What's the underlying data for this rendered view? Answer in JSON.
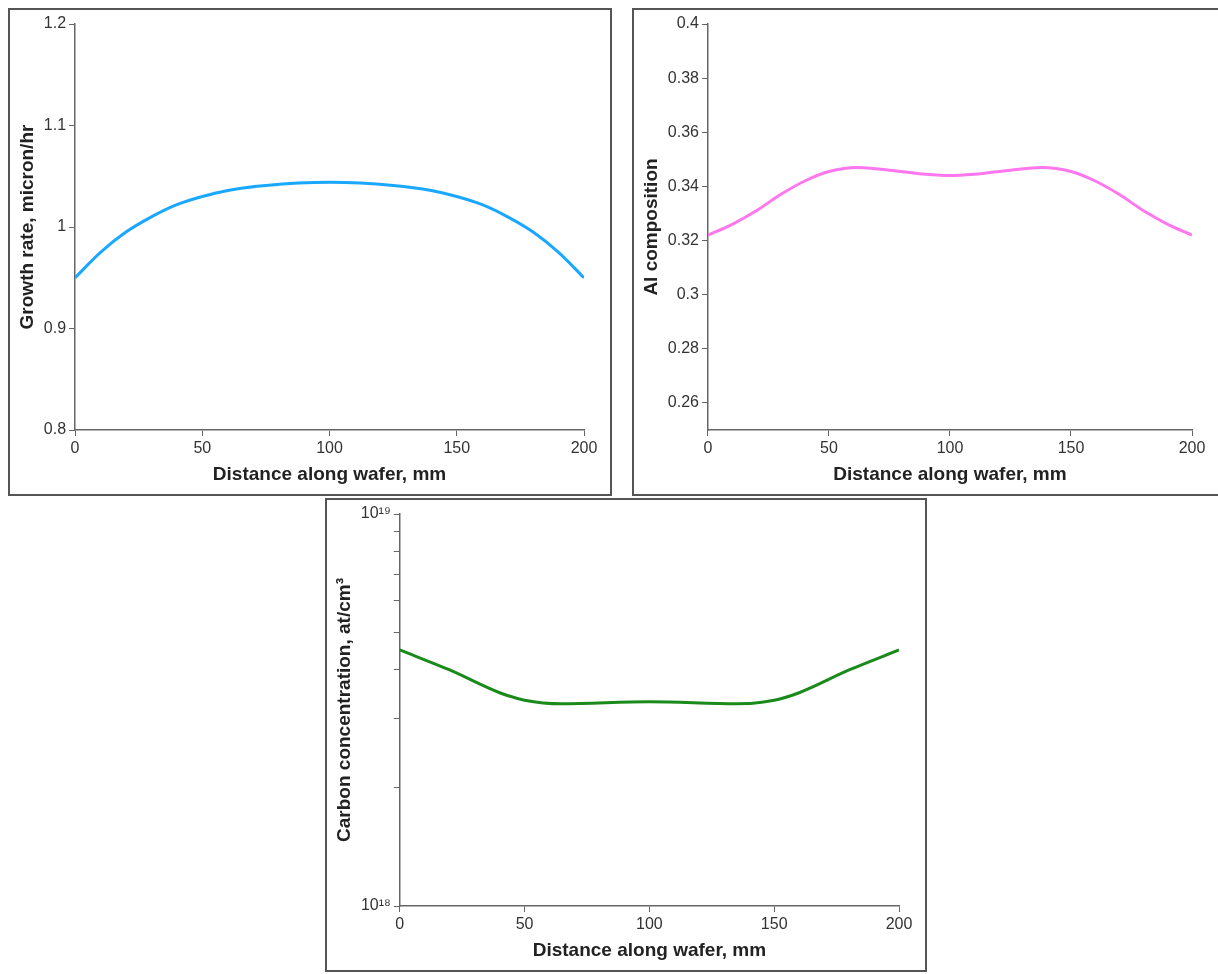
{
  "chart_data": [
    {
      "type": "line",
      "xlabel": "Distance along wafer, mm",
      "ylabel": "Growth rate, micron/hr",
      "xlim": [
        0,
        200
      ],
      "xticks": [
        0,
        50,
        100,
        150,
        200
      ],
      "ylim": [
        0.8,
        1.2
      ],
      "yticks": [
        0.8,
        0.9,
        1,
        1.1,
        1.2
      ],
      "grid": false,
      "legend": false,
      "marker": "none",
      "line_style": "solid",
      "series": [
        {
          "color": "#1aa7ff",
          "x": [
            0,
            10,
            20,
            30,
            40,
            50,
            60,
            75,
            100,
            125,
            140,
            150,
            160,
            170,
            180,
            190,
            200
          ],
          "values": [
            0.95,
            0.975,
            0.995,
            1.01,
            1.022,
            1.03,
            1.036,
            1.041,
            1.044,
            1.041,
            1.036,
            1.03,
            1.022,
            1.01,
            0.995,
            0.975,
            0.95
          ]
        }
      ]
    },
    {
      "type": "line",
      "xlabel": "Distance along wafer, mm",
      "ylabel": "Al composition",
      "xlim": [
        0,
        200
      ],
      "xticks": [
        0,
        50,
        100,
        150,
        200
      ],
      "ylim": [
        0.25,
        0.4
      ],
      "yticks": [
        0.26,
        0.28,
        0.3,
        0.32,
        0.34,
        0.36,
        0.38,
        0.4
      ],
      "grid": false,
      "legend": false,
      "marker": "none",
      "line_style": "solid",
      "series": [
        {
          "color": "#ff77ee",
          "x": [
            0,
            10,
            20,
            30,
            40,
            50,
            62,
            75,
            90,
            100,
            110,
            125,
            138,
            150,
            160,
            170,
            180,
            190,
            200
          ],
          "values": [
            0.322,
            0.326,
            0.331,
            0.337,
            0.342,
            0.3455,
            0.347,
            0.346,
            0.3445,
            0.344,
            0.3445,
            0.346,
            0.347,
            0.3455,
            0.342,
            0.337,
            0.331,
            0.326,
            0.322
          ]
        }
      ]
    },
    {
      "type": "line",
      "xlabel": "Distance along wafer, mm",
      "ylabel": "Carbon concentration, at/cm³",
      "xlim": [
        0,
        200
      ],
      "xticks": [
        0,
        50,
        100,
        150,
        200
      ],
      "ylim": [
        1e+18,
        1e+19
      ],
      "log": "y",
      "yticks": [
        {
          "value": 1e+18,
          "label": "10¹⁸"
        },
        {
          "value": 2e+18,
          "label": null
        },
        {
          "value": 3e+18,
          "label": null
        },
        {
          "value": 4e+18,
          "label": null
        },
        {
          "value": 5e+18,
          "label": null
        },
        {
          "value": 6e+18,
          "label": null
        },
        {
          "value": 7e+18,
          "label": null
        },
        {
          "value": 8e+18,
          "label": null
        },
        {
          "value": 9e+18,
          "label": null
        },
        {
          "value": 1e+19,
          "label": "10¹⁹"
        }
      ],
      "grid": false,
      "legend": false,
      "marker": "none",
      "line_style": "solid",
      "series": [
        {
          "color": "#1a8a1a",
          "x": [
            0,
            20,
            40,
            50,
            65,
            100,
            135,
            150,
            160,
            180,
            200
          ],
          "values": [
            4.5e+18,
            4e+18,
            3.5e+18,
            3.35e+18,
            3.28e+18,
            3.32e+18,
            3.28e+18,
            3.35e+18,
            3.5e+18,
            4e+18,
            4.5e+18
          ]
        }
      ]
    }
  ]
}
